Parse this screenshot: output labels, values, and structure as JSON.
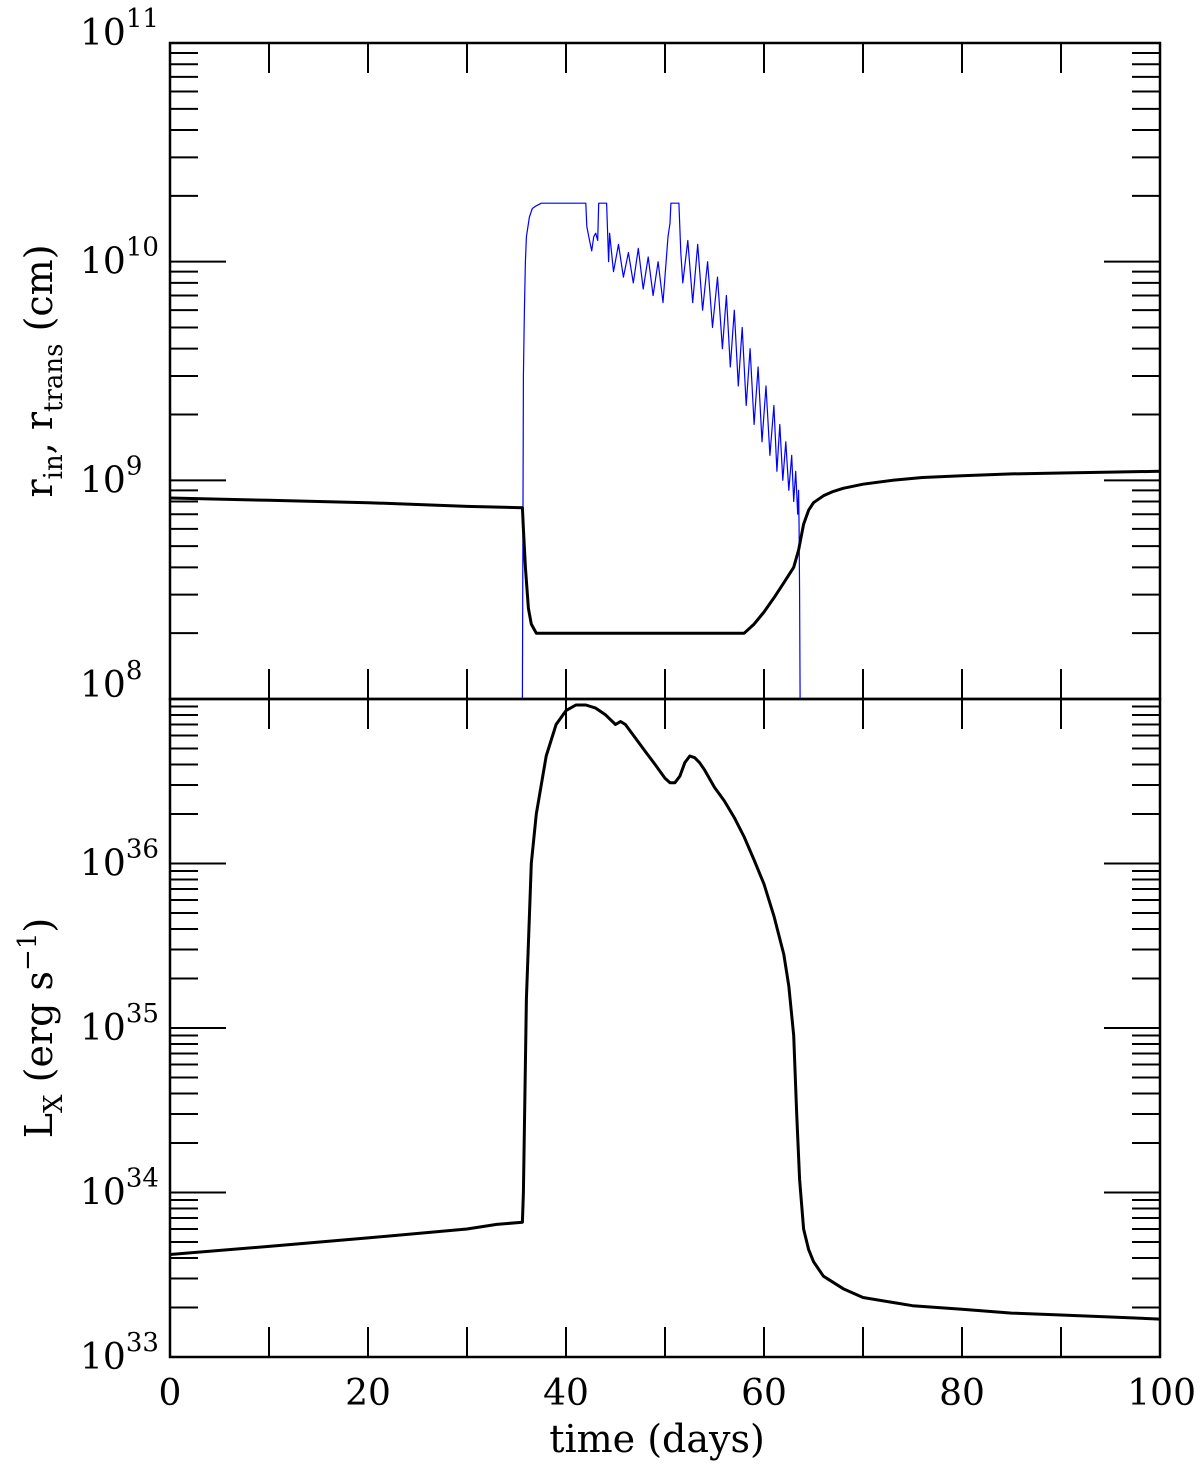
{
  "chart_data": [
    {
      "type": "line",
      "panel": "top",
      "ylabel": {
        "parts": [
          "r",
          "in",
          ", r",
          "trans",
          " (cm)"
        ]
      },
      "xlim": [
        0,
        100
      ],
      "ylim": [
        100000000.0,
        100000000000.0
      ],
      "yscale": "log",
      "ytick_labels": [
        {
          "base": "10",
          "exp": "8",
          "value": 100000000.0
        },
        {
          "base": "10",
          "exp": "9",
          "value": 1000000000.0
        },
        {
          "base": "10",
          "exp": "10",
          "value": 10000000000.0
        },
        {
          "base": "10",
          "exp": "11",
          "value": 100000000000.0
        }
      ],
      "series": [
        {
          "color": "#0000ff",
          "width": 1.2,
          "x": [
            35.6,
            35.7,
            35.8,
            35.9,
            36.0,
            36.3,
            36.6,
            37.0,
            37.5,
            38.0,
            42.0,
            42.1,
            42.3,
            42.6,
            42.8,
            43.0,
            43.2,
            43.3,
            44.1,
            44.3,
            44.4,
            44.8,
            45.3,
            45.8,
            46.3,
            46.8,
            47.3,
            47.8,
            48.3,
            48.8,
            49.3,
            49.8,
            50.3,
            50.5,
            50.6,
            51.4,
            51.6,
            51.8,
            52.3,
            52.8,
            53.3,
            53.8,
            54.3,
            54.8,
            55.3,
            55.8,
            56.2,
            56.6,
            57.0,
            57.4,
            57.8,
            58.2,
            58.6,
            59.0,
            59.4,
            59.8,
            60.2,
            60.6,
            61.0,
            61.3,
            61.6,
            61.9,
            62.2,
            62.5,
            62.8,
            63.0,
            63.2,
            63.4,
            63.5,
            63.55,
            63.6,
            63.65
          ],
          "y": [
            100000000.0,
            3000000000.0,
            6000000000.0,
            10000000000.0,
            13000000000.0,
            16000000000.0,
            17500000000.0,
            18000000000.0,
            18500000000.0,
            18500000000.0,
            18500000000.0,
            14500000000.0,
            13000000000.0,
            11200000000.0,
            13000000000.0,
            13500000000.0,
            12500000000.0,
            18500000000.0,
            18500000000.0,
            10000000000.0,
            13500000000.0,
            9000000000.0,
            12000000000.0,
            8500000000.0,
            11000000000.0,
            8000000000.0,
            11500000000.0,
            7500000000.0,
            10500000000.0,
            7000000000.0,
            10000000000.0,
            6500000000.0,
            13000000000.0,
            15000000000.0,
            18500000000.0,
            18500000000.0,
            11000000000.0,
            8000000000.0,
            12500000000.0,
            6500000000.0,
            12000000000.0,
            6000000000.0,
            10000000000.0,
            5000000000.0,
            8500000000.0,
            4000000000.0,
            7000000000.0,
            3300000000.0,
            6000000000.0,
            2700000000.0,
            5000000000.0,
            2200000000.0,
            4000000000.0,
            1800000000.0,
            3300000000.0,
            1500000000.0,
            2700000000.0,
            1300000000.0,
            2200000000.0,
            1100000000.0,
            1800000000.0,
            1000000000.0,
            1500000000.0,
            900000000.0,
            1300000000.0,
            800000000.0,
            1100000000.0,
            700000000.0,
            900000000.0,
            600000000.0,
            300000000.0,
            100000000.0
          ]
        },
        {
          "color": "#000000",
          "width": 3,
          "x": [
            0,
            10,
            20,
            30,
            35.6,
            35.7,
            35.9,
            36.2,
            36.5,
            37.0,
            45,
            50,
            58,
            59,
            60,
            61,
            62,
            63,
            63.5,
            64,
            64.5,
            65,
            66,
            67,
            68,
            70,
            73,
            76,
            80,
            85,
            90,
            95,
            100
          ],
          "y": [
            830000000.0,
            810000000.0,
            790000000.0,
            760000000.0,
            750000000.0,
            600000000.0,
            400000000.0,
            260000000.0,
            220000000.0,
            200000000.0,
            200000000.0,
            200000000.0,
            200000000.0,
            220000000.0,
            250000000.0,
            290000000.0,
            340000000.0,
            400000000.0,
            480000000.0,
            630000000.0,
            730000000.0,
            790000000.0,
            850000000.0,
            890000000.0,
            920000000.0,
            960000000.0,
            1000000000.0,
            1030000000.0,
            1050000000.0,
            1070000000.0,
            1080000000.0,
            1090000000.0,
            1100000000.0
          ]
        }
      ]
    },
    {
      "type": "line",
      "panel": "bottom",
      "ylabel": {
        "parts": [
          "L",
          "X",
          " (erg s",
          "−1",
          ")"
        ]
      },
      "xlabel": "time (days)",
      "xlim": [
        0,
        100
      ],
      "ylim": [
        1e+33,
        1e+37
      ],
      "yscale": "log",
      "xtick_labels": [
        "0",
        "20",
        "40",
        "60",
        "80",
        "100"
      ],
      "xtick_values": [
        0,
        20,
        40,
        60,
        80,
        100
      ],
      "ytick_labels": [
        {
          "base": "10",
          "exp": "33",
          "value": 1e+33
        },
        {
          "base": "10",
          "exp": "34",
          "value": 1e+34
        },
        {
          "base": "10",
          "exp": "35",
          "value": 1e+35
        },
        {
          "base": "10",
          "exp": "36",
          "value": 1e+36
        }
      ],
      "series": [
        {
          "color": "#000000",
          "width": 3,
          "x": [
            0,
            10,
            20,
            30,
            33,
            35.6,
            35.7,
            36.0,
            36.5,
            37,
            38,
            39,
            40,
            41,
            42,
            43,
            44,
            45,
            45.5,
            46,
            47,
            48,
            49,
            50,
            50.5,
            51,
            51.5,
            52,
            52.5,
            53,
            53.5,
            54,
            55,
            56,
            57,
            58,
            59,
            60,
            61,
            62,
            62.5,
            63,
            63.3,
            63.6,
            64,
            64.5,
            65,
            66,
            68,
            70,
            75,
            80,
            85,
            90,
            95,
            100
          ],
          "y": [
            4.2e+33,
            4.7e+33,
            5.3e+33,
            6e+33,
            6.4e+33,
            6.6e+33,
            1e+34,
            1.5e+35,
            1e+36,
            2e+36,
            4.5e+36,
            7e+36,
            8.5e+36,
            9.2e+36,
            9.2e+36,
            8.8e+36,
            8e+36,
            7e+36,
            7.3e+36,
            7e+36,
            5.8e+36,
            4.8e+36,
            4e+36,
            3.3e+36,
            3.1e+36,
            3.1e+36,
            3.4e+36,
            4.1e+36,
            4.5e+36,
            4.4e+36,
            4.1e+36,
            3.7e+36,
            2.9e+36,
            2.4e+36,
            1.9e+36,
            1.45e+36,
            1.05e+36,
            7.5e+35,
            4.8e+35,
            2.8e+35,
            1.8e+35,
            9e+34,
            3e+34,
            1.2e+34,
            6e+33,
            4.5e+33,
            3.8e+33,
            3.1e+33,
            2.6e+33,
            2.3e+33,
            2.05e+33,
            1.95e+33,
            1.85e+33,
            1.8e+33,
            1.75e+33,
            1.7e+33
          ]
        }
      ]
    }
  ]
}
